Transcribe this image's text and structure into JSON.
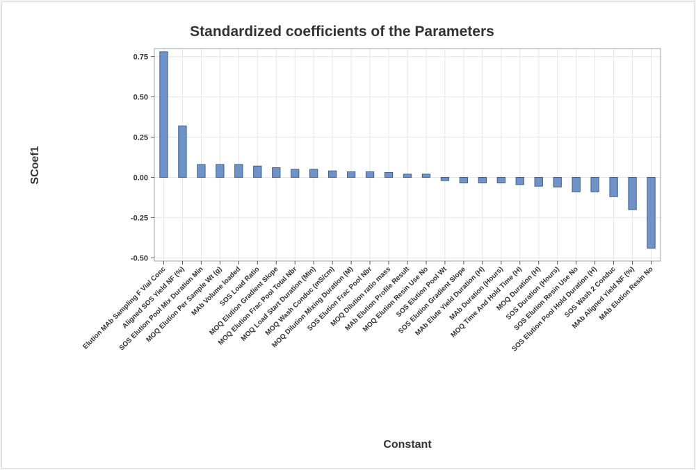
{
  "chart_data": {
    "type": "bar",
    "title": "Standardized coefficients of the Parameters",
    "xlabel": "Constant",
    "ylabel": "SCoef1",
    "ylim": [
      -0.52,
      0.8
    ],
    "yticks": [
      "0.75",
      "0.50",
      "0.25",
      "0.00",
      "-0.25",
      "-0.50"
    ],
    "ytick_values": [
      0.75,
      0.5,
      0.25,
      0.0,
      -0.25,
      -0.5
    ],
    "grid": true,
    "bar_color": "#6f93c6",
    "bar_edge_color": "#3a5f93",
    "categories": [
      "Elution MAb Sampling F Vial Conc",
      "Aligned SOS Yield NF (%)",
      "SOS Elution Pool Mix Duration Min",
      "MOQ Elution Per Sample Wt (g)",
      "MAb Volume loaded",
      "SOS Load Ratio",
      "MOQ Elution Gradient Slope",
      "MOQ Elution Frac Pool Total Nbr",
      "MOQ Load Start Duration (Min)",
      "MOQ Wash Conduc (mS/cm)",
      "MOQ Dilution Mixing Duration (M)",
      "SOS Elution Frac Pool Nbr",
      "MOQ Dilution ratio mass",
      "MAb Elution Profile Result",
      "MOQ Elution Resin Use No",
      "SOS Elution Pool Wt",
      "SOS Elution Gradient Slope",
      "MAb Elute Yield Duration (H)",
      "MAb Duration (Hours)",
      "MOQ Time And Hold Time (H)",
      "MOQ Duration (H)",
      "SOS Duration (Hours)",
      "SOS Elution Resin Use No",
      "SOS Elution Pool Hold Duration (H)",
      "SOS Wash 2 Conduc",
      "MAb Aligned Yield NF (%)",
      "MAb Elution Resin No"
    ],
    "values": [
      0.78,
      0.32,
      0.08,
      0.08,
      0.08,
      0.07,
      0.06,
      0.05,
      0.05,
      0.04,
      0.035,
      0.035,
      0.03,
      0.02,
      0.02,
      -0.02,
      -0.035,
      -0.035,
      -0.035,
      -0.045,
      -0.055,
      -0.06,
      -0.09,
      -0.09,
      -0.12,
      -0.2,
      -0.44
    ]
  }
}
